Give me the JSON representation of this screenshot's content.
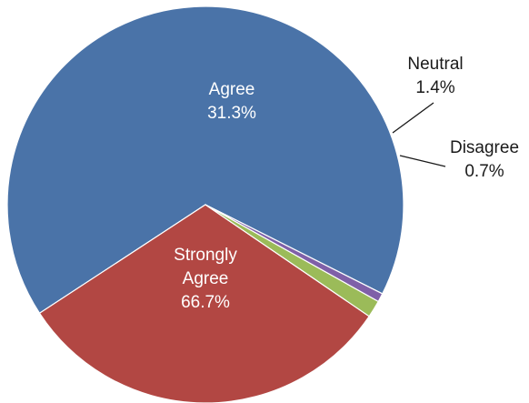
{
  "chart_data": {
    "type": "pie",
    "title": "",
    "slices": [
      {
        "name": "Strongly Agree",
        "value": 66.7,
        "value_label": "66.7%",
        "label_lines": [
          "Strongly",
          "Agree",
          "66.7%"
        ],
        "color": "#4a73a8",
        "label_text_color": "#ffffff"
      },
      {
        "name": "Agree",
        "value": 31.3,
        "value_label": "31.3%",
        "label_lines": [
          "Agree",
          "31.3%"
        ],
        "color": "#b24743",
        "label_text_color": "#ffffff"
      },
      {
        "name": "Neutral",
        "value": 1.4,
        "value_label": "1.4%",
        "label_lines": [
          "Neutral",
          "1.4%"
        ],
        "color": "#9bbb59",
        "label_text_color": "#1a1a1a"
      },
      {
        "name": "Disagree",
        "value": 0.7,
        "value_label": "0.7%",
        "label_lines": [
          "Disagree",
          "0.7%"
        ],
        "color": "#7f60a8",
        "label_text_color": "#1a1a1a"
      }
    ],
    "legend": "none",
    "label_style": "category-and-percent",
    "slice_border_color": "#ffffff"
  }
}
